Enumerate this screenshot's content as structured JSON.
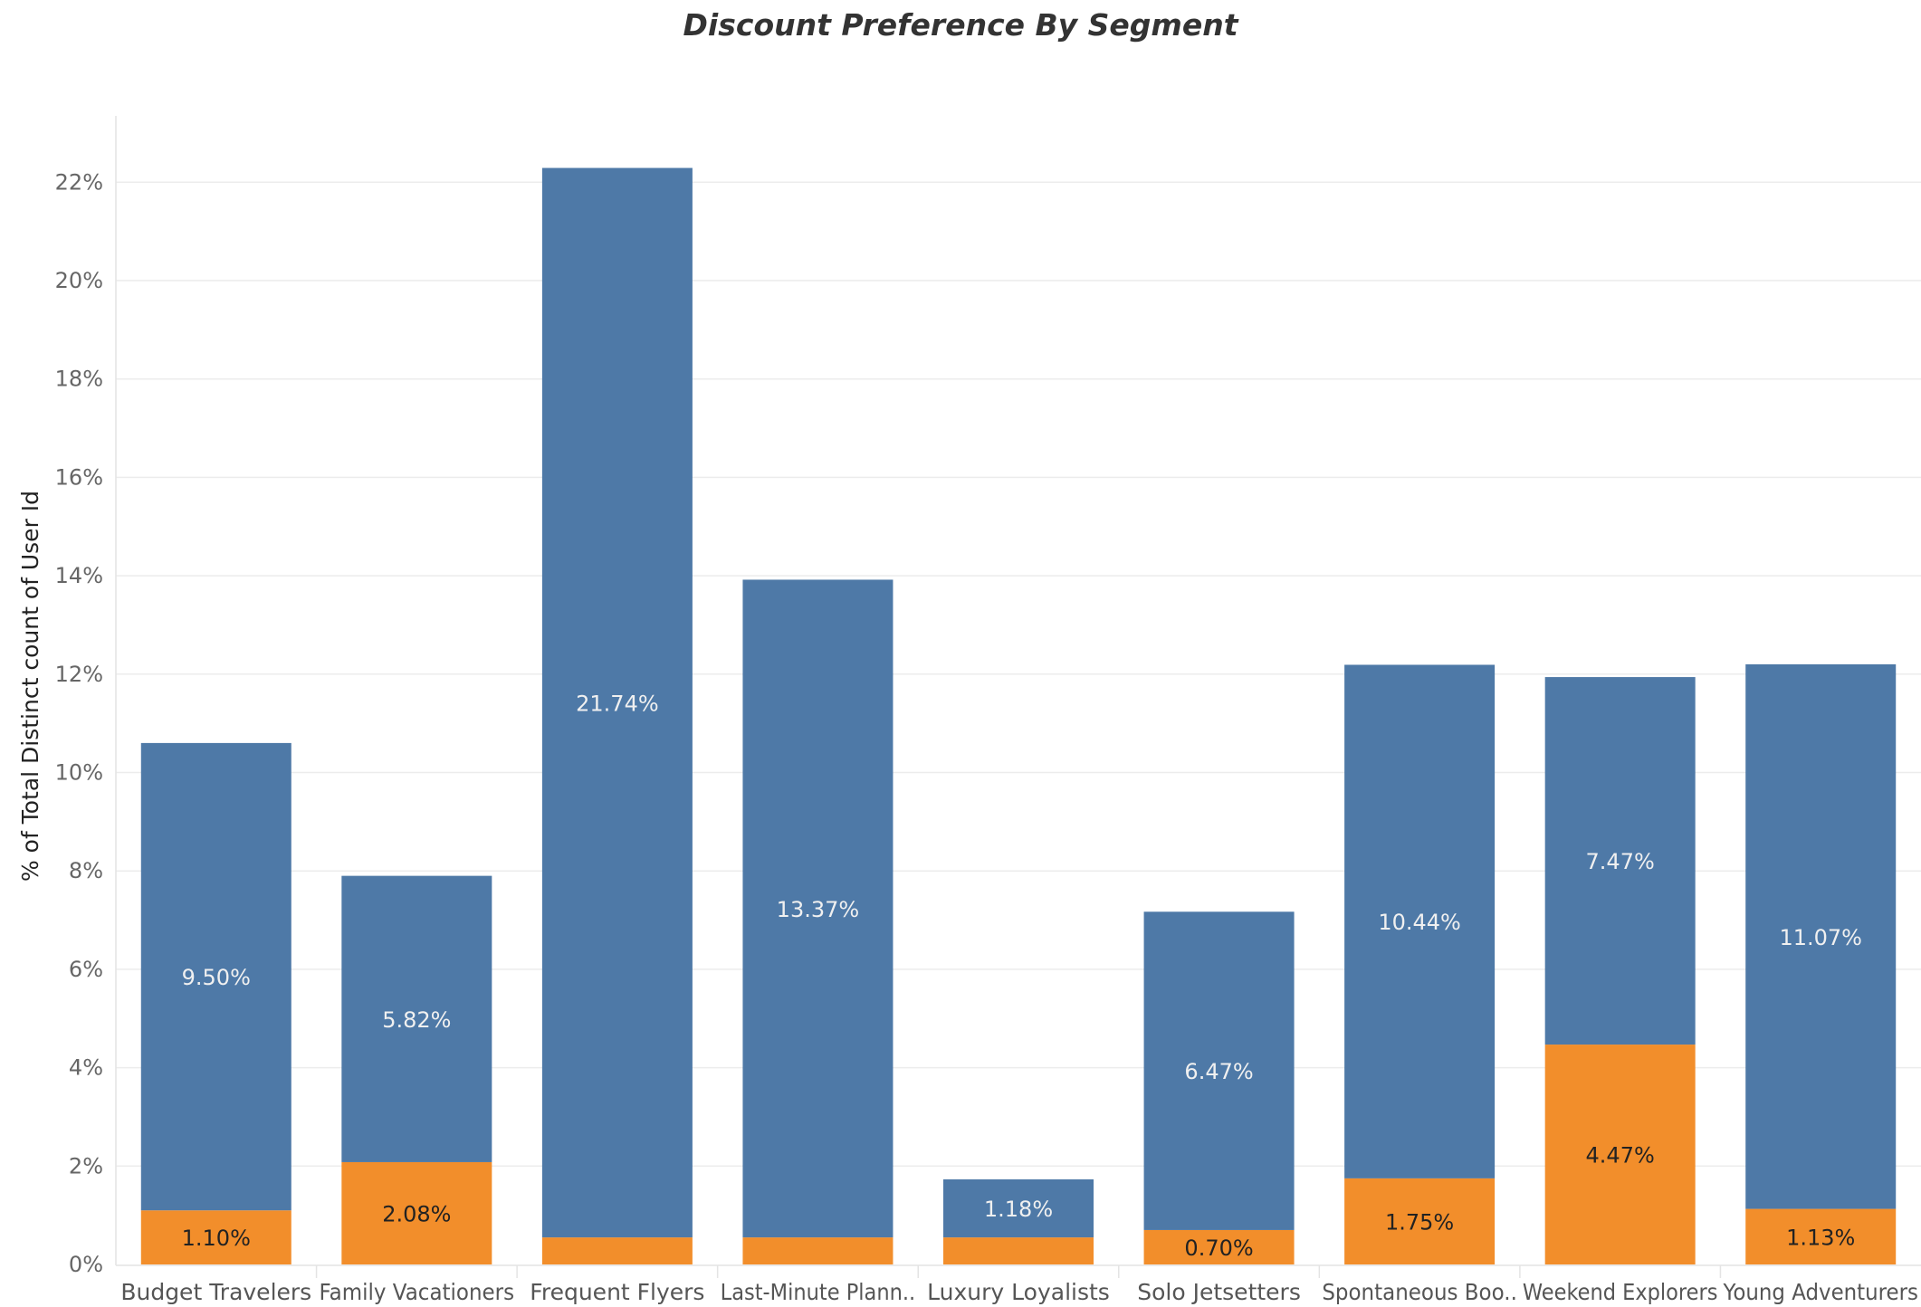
{
  "chart_data": {
    "type": "bar",
    "stacked": true,
    "title": "Discount Preference By Segment",
    "xlabel": "",
    "ylabel": "% of Total Distinct count of User Id",
    "ylim": [
      0,
      24
    ],
    "yticks": [
      0,
      2,
      4,
      6,
      8,
      10,
      12,
      14,
      16,
      18,
      20,
      22
    ],
    "ytick_labels": [
      "0%",
      "2%",
      "4%",
      "6%",
      "8%",
      "10%",
      "12%",
      "14%",
      "16%",
      "18%",
      "20%",
      "22%"
    ],
    "grid": true,
    "categories": [
      "Budget Travelers",
      "Family Vacationers",
      "Frequent Flyers",
      "Last-Minute Plann..",
      "Luxury Loyalists",
      "Solo Jetsetters",
      "Spontaneous Boo..",
      "Weekend Explorers",
      "Young Adventurers"
    ],
    "series": [
      {
        "color": "#f28e2b",
        "values": [
          1.1,
          2.08,
          0.55,
          0.55,
          0.55,
          0.7,
          1.75,
          4.47,
          1.13
        ],
        "labels": [
          "1.10%",
          "2.08%",
          "",
          "",
          "",
          "0.70%",
          "1.75%",
          "4.47%",
          "1.13%"
        ],
        "label_color": "#222222"
      },
      {
        "color": "#4e79a7",
        "values": [
          9.5,
          5.82,
          21.74,
          13.37,
          1.18,
          6.47,
          10.44,
          7.47,
          11.07
        ],
        "labels": [
          "9.50%",
          "5.82%",
          "21.74%",
          "13.37%",
          "1.18%",
          "6.47%",
          "10.44%",
          "7.47%",
          "11.07%"
        ],
        "label_color": "#f0f0f0"
      }
    ]
  }
}
